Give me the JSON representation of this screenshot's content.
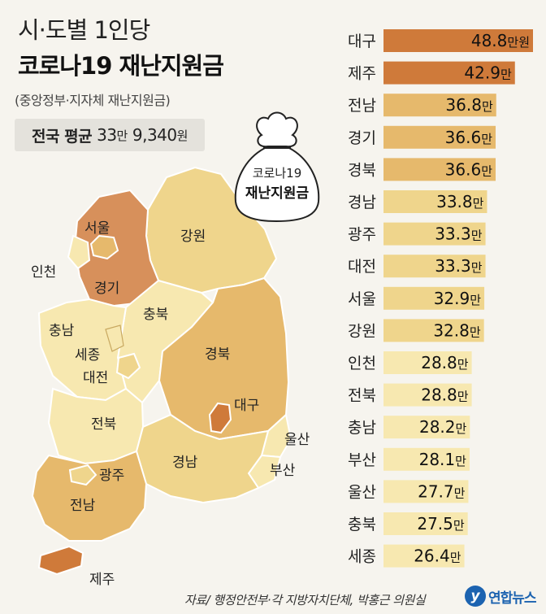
{
  "title": {
    "line1": "시·도별 1인당",
    "line2": "코로나19 재난지원금",
    "subtitle": "(중앙정부·지자체 재난지원금)"
  },
  "national_average": {
    "label": "전국 평균",
    "value": "33",
    "unit1": "만",
    "value2": "9,340",
    "unit2": "원"
  },
  "bag": {
    "line1": "코로나19",
    "line2": "재난지원금"
  },
  "map_labels": {
    "seoul": "서울",
    "incheon": "인천",
    "gyeonggi": "경기",
    "gangwon": "강원",
    "chungbuk": "충북",
    "chungnam": "충남",
    "sejong": "세종",
    "daejeon": "대전",
    "gyeongbuk": "경북",
    "daegu": "대구",
    "jeonbuk": "전북",
    "ulsan": "울산",
    "busan": "부산",
    "gyeongnam": "경남",
    "gwangju": "광주",
    "jeonnam": "전남",
    "jeju": "제주"
  },
  "colors": {
    "dark": "#cf7a3a",
    "medium": "#e6b96c",
    "light": "#efd58c",
    "pale": "#f7e8b0"
  },
  "chart_data": {
    "type": "bar",
    "orientation": "horizontal",
    "unit": "만원",
    "categories": [
      "대구",
      "제주",
      "전남",
      "경기",
      "경북",
      "경남",
      "광주",
      "대전",
      "서울",
      "강원",
      "인천",
      "전북",
      "충남",
      "부산",
      "울산",
      "충북",
      "세종"
    ],
    "values": [
      48.8,
      42.9,
      36.8,
      36.6,
      36.6,
      33.8,
      33.3,
      33.3,
      32.9,
      32.8,
      28.8,
      28.8,
      28.2,
      28.1,
      27.7,
      27.5,
      26.4
    ],
    "value_labels": [
      "48.8",
      "42.9",
      "36.8",
      "36.6",
      "36.6",
      "33.8",
      "33.3",
      "33.3",
      "32.9",
      "32.8",
      "28.8",
      "28.8",
      "28.2",
      "28.1",
      "27.7",
      "27.5",
      "26.4"
    ],
    "first_unit_label": "만원",
    "unit_label": "만",
    "tiers": [
      "dark",
      "dark",
      "medium",
      "medium",
      "medium",
      "light",
      "light",
      "light",
      "light",
      "light",
      "pale",
      "pale",
      "pale",
      "pale",
      "pale",
      "pale",
      "pale"
    ]
  },
  "footer": {
    "source": "자료/ 행정안전부·각 지방자치단체, 박홍근 의원실",
    "logo_text": "연합뉴스",
    "logo_mark": "y"
  }
}
